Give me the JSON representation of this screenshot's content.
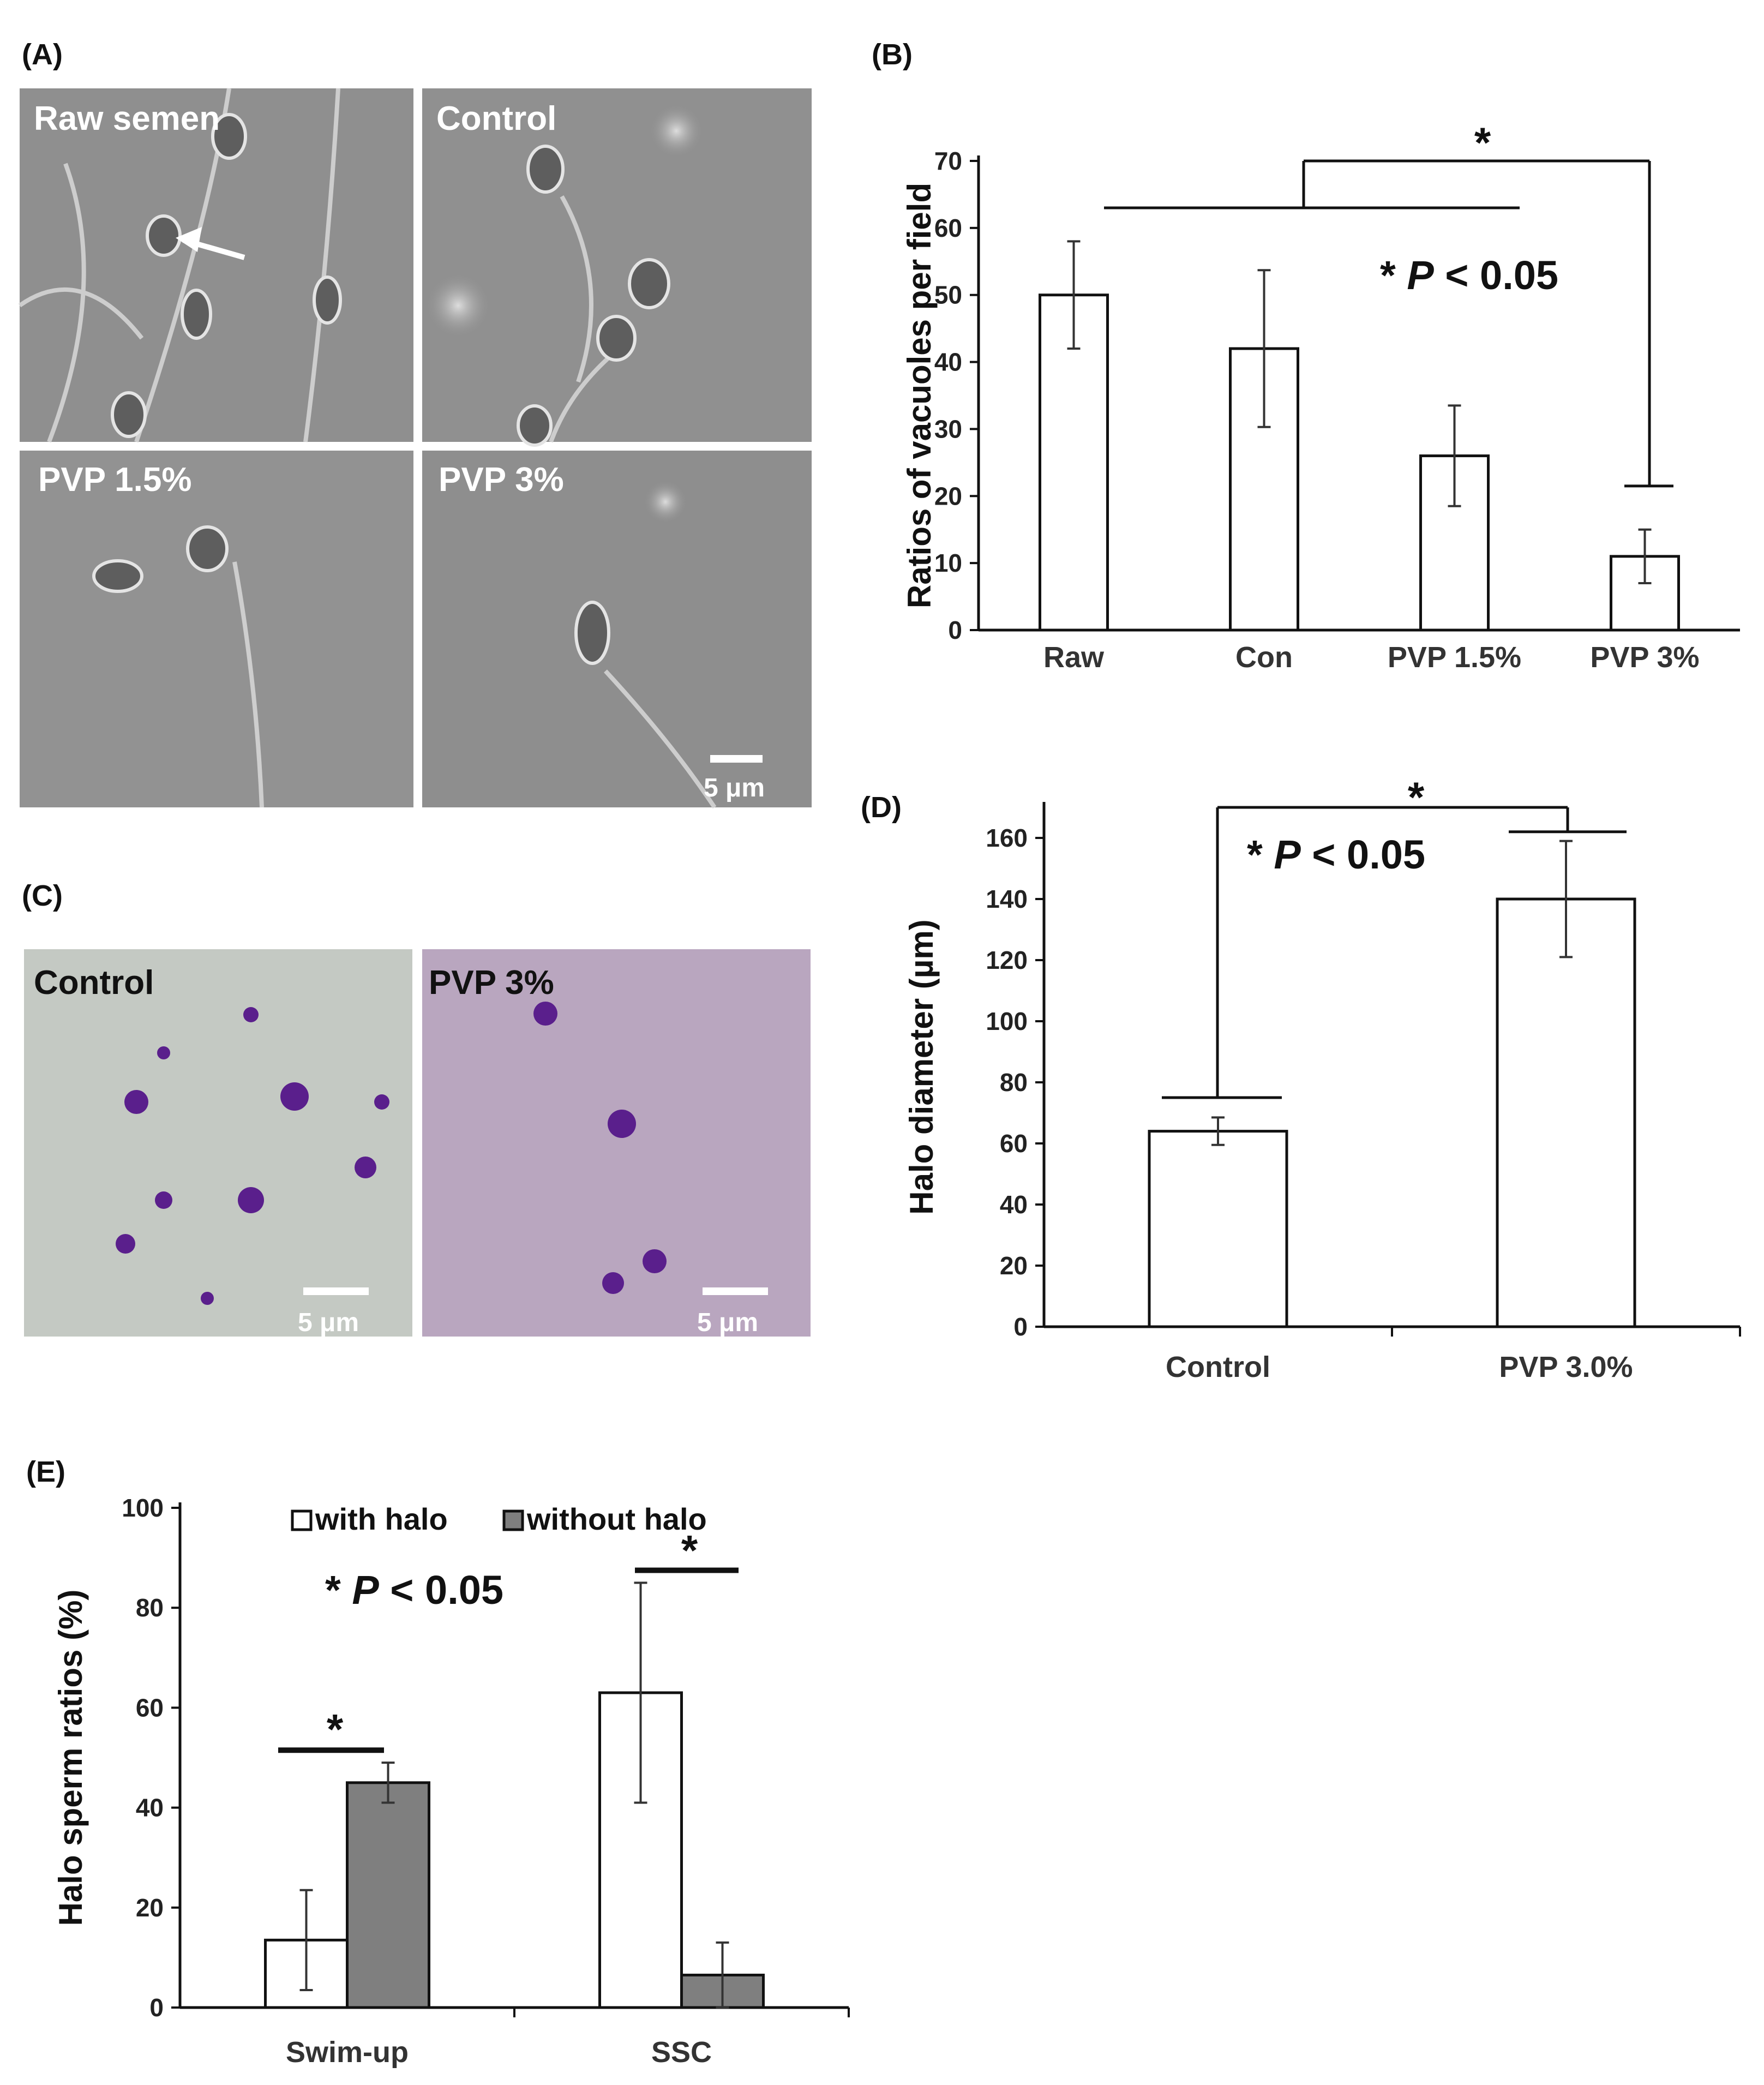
{
  "panels": {
    "A": "(A)",
    "B": "(B)",
    "C": "(C)",
    "D": "(D)",
    "E": "(E)"
  },
  "micrographs_A": {
    "tl": "Raw semen",
    "tr": "Control",
    "bl": "PVP 1.5%",
    "br": "PVP 3%",
    "scale": "5 μm",
    "bg": "#8f8f8f"
  },
  "micrographs_C": {
    "left": "Control",
    "right": "PVP 3%",
    "scale": "5 μm",
    "left_bg": "#c4c9c3",
    "right_bg": "#b9a6bf",
    "stain": "#5a1f8c"
  },
  "chart_data": [
    {
      "id": "B",
      "type": "bar",
      "categories": [
        "Raw",
        "Con",
        "PVP 1.5%",
        "PVP 3%"
      ],
      "values": [
        50,
        42,
        26,
        11
      ],
      "errors": [
        8,
        11.7,
        7.5,
        4
      ],
      "ylabel": "Ratios of vacuoles per field",
      "ylim": [
        0,
        70
      ],
      "yticks": [
        0,
        10,
        20,
        30,
        40,
        50,
        60,
        70
      ],
      "annotation": "P",
      "annotation_prefix": "*",
      "annotation_suffix": "< 0.05",
      "significance": "*"
    },
    {
      "id": "D",
      "type": "bar",
      "categories": [
        "Control",
        "PVP 3.0%"
      ],
      "values": [
        64,
        140
      ],
      "errors": [
        4.5,
        19
      ],
      "ylabel": "Halo diameter (µm)",
      "ylim": [
        0,
        170
      ],
      "yticks": [
        0,
        20,
        40,
        60,
        80,
        100,
        120,
        140,
        160
      ],
      "annotation": "P",
      "annotation_prefix": "*",
      "annotation_suffix": "< 0.05",
      "significance": "*"
    },
    {
      "id": "E",
      "type": "bar",
      "categories": [
        "Swim-up",
        "SSC"
      ],
      "series": [
        {
          "name": "with halo",
          "values": [
            13.5,
            63
          ],
          "errors": [
            10,
            22
          ],
          "color": "#ffffff"
        },
        {
          "name": "without halo",
          "values": [
            45,
            6.5
          ],
          "errors": [
            4,
            6.5
          ],
          "color": "#7f7f7f"
        }
      ],
      "ylabel": "Halo sperm ratios (%)",
      "ylim": [
        0,
        100
      ],
      "yticks": [
        0,
        20,
        40,
        60,
        80,
        100
      ],
      "legend": "top",
      "annotation": "P",
      "annotation_prefix": "*",
      "annotation_suffix": "< 0.05",
      "significance": "*"
    }
  ]
}
